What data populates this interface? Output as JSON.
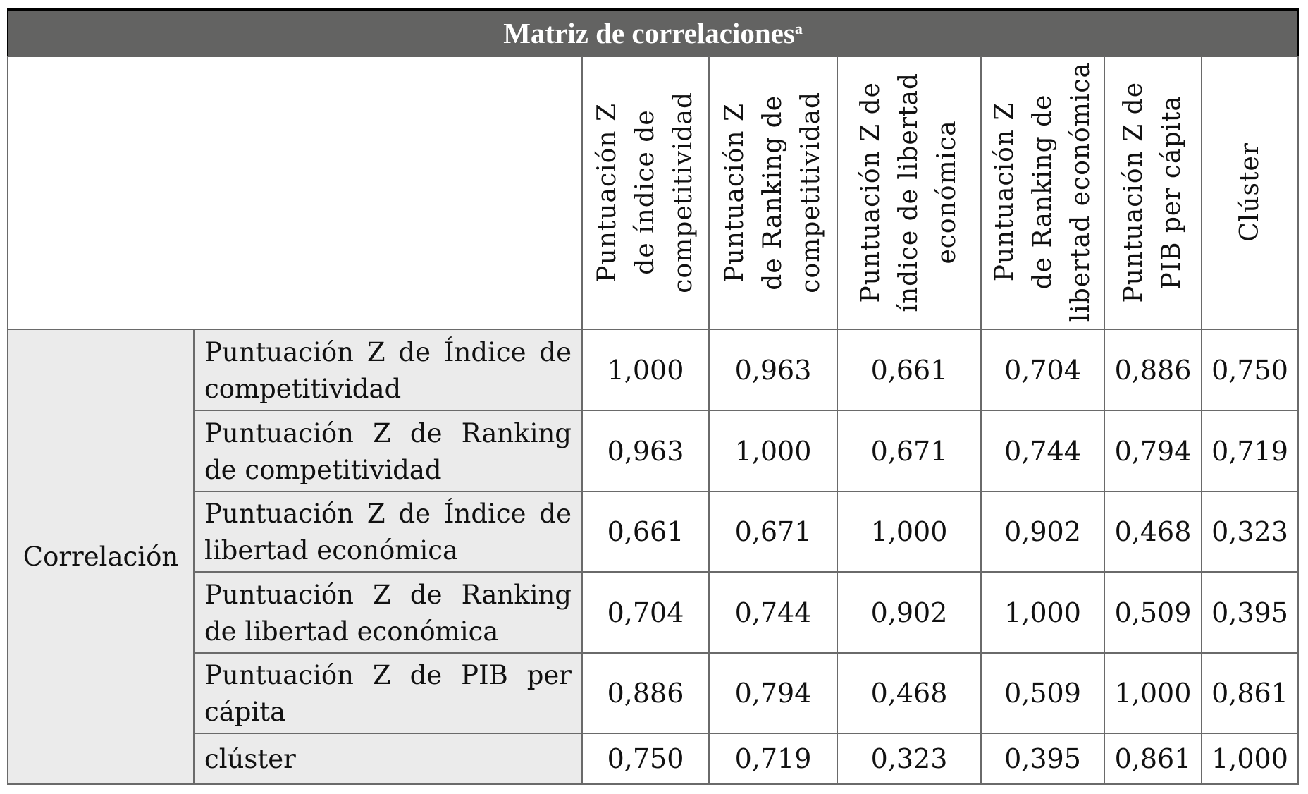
{
  "title": "Matriz de correlaciones",
  "title_superscript": "a",
  "column_headers": [
    "Puntuación Z\nde índice de\ncompetitividad",
    "Puntuación Z\nde Ranking de\ncompetitividad",
    "Puntuación Z de\níndice de libertad\neconómica",
    "Puntuación Z\nde Ranking de\nlibertad económica",
    "Puntuación Z de\nPIB per cápita",
    "Clúster"
  ],
  "group_label": "Correlación",
  "rows": [
    {
      "label": "Puntuación Z de Índice de competitividad",
      "values": [
        "1,000",
        "0,963",
        "0,661",
        "0,704",
        "0,886",
        "0,750"
      ]
    },
    {
      "label": "Puntuación Z de Ranking de competitividad",
      "values": [
        "0,963",
        "1,000",
        "0,671",
        "0,744",
        "0,794",
        "0,719"
      ]
    },
    {
      "label": "Puntuación Z de Índice de libertad económica",
      "values": [
        "0,661",
        "0,671",
        "1,000",
        "0,902",
        "0,468",
        "0,323"
      ]
    },
    {
      "label": "Puntuación Z de Ranking de libertad económica",
      "values": [
        "0,704",
        "0,744",
        "0,902",
        "1,000",
        "0,509",
        "0,395"
      ]
    },
    {
      "label": "Puntuación Z de PIB per cápita",
      "values": [
        "0,886",
        "0,794",
        "0,468",
        "0,509",
        "1,000",
        "0,861"
      ]
    },
    {
      "label": "clúster",
      "values": [
        "0,750",
        "0,719",
        "0,323",
        "0,395",
        "0,861",
        "1,000"
      ]
    }
  ],
  "colors": {
    "title_bg": "#636362",
    "label_bg": "#ebebeb",
    "grid": "#6a6a6a"
  }
}
